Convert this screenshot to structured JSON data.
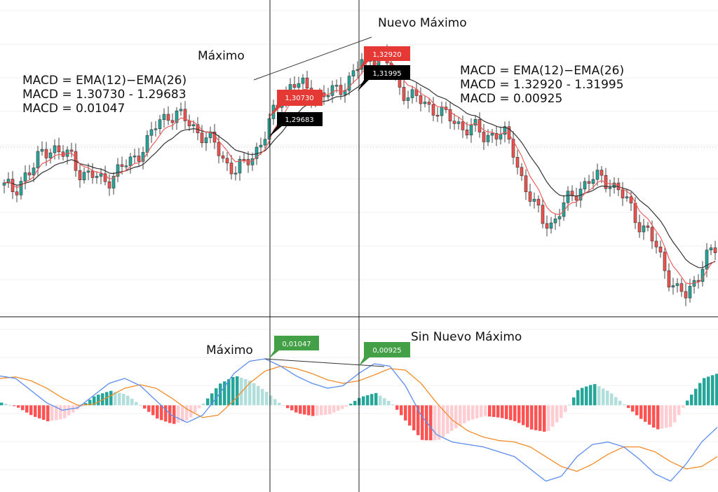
{
  "annotations": {
    "left_formula": [
      "MACD = EMA(12)−EMA(26)",
      "MACD = 1.30730 - 1.29683",
      "MACD = 0.01047"
    ],
    "right_formula": [
      "MACD = EMA(12)−EMA(26)",
      "MACD = 1.32920 - 1.31995",
      "MACD = 0.00925"
    ],
    "price_high_1": "Máximo",
    "price_high_2": "Nuevo Máximo",
    "macd_high_1": "Máximo",
    "macd_high_2": "Sin Nuevo Máximo"
  },
  "price_tags": {
    "ema12_a": "1,30730",
    "ema26_a": "1,29683",
    "ema12_b": "1,32920",
    "ema26_b": "1,31995"
  },
  "macd_tags": {
    "peak_1": "0,01047",
    "peak_2": "0,00925"
  },
  "colors": {
    "bull": "#26a69a",
    "bear": "#ef5350",
    "ema_fast": "#ef5350",
    "ema_slow": "#333333",
    "macd_line": "#5b8def",
    "signal_line": "#f28c28",
    "hist_pos_strong": "#26a69a",
    "hist_pos_weak": "#b2dfdb",
    "hist_neg_strong": "#ff5252",
    "hist_neg_weak": "#ffcdd2",
    "tag_red": "#e53935",
    "tag_black": "#000000",
    "tag_green": "#43a047"
  },
  "chart_data": [
    {
      "type": "candlestick",
      "title": "",
      "series": [
        {
          "name": "EMA(12)",
          "values_at_markers": [
            1.3073,
            1.3292
          ]
        },
        {
          "name": "EMA(26)",
          "values_at_markers": [
            1.29683,
            1.31995
          ]
        }
      ],
      "price_path": [
        0.0,
        -0.05,
        0.1,
        0.15,
        0.3,
        0.35,
        0.28,
        0.25,
        0.12,
        0.1,
        0.05,
        0.08,
        0.15,
        0.2,
        0.3,
        0.4,
        0.55,
        0.63,
        0.62,
        0.56,
        0.5,
        0.42,
        0.35,
        0.22,
        0.14,
        0.18,
        0.3,
        0.42,
        0.62,
        0.8,
        0.9,
        0.86,
        0.82,
        0.78,
        0.8,
        0.86,
        0.94,
        1.05,
        1.12,
        1.15,
        1.05,
        0.88,
        0.8,
        0.75,
        0.7,
        0.68,
        0.6,
        0.55,
        0.52,
        0.5,
        0.42,
        0.48,
        0.45,
        0.3,
        0.05,
        -0.15,
        -0.28,
        -0.32,
        -0.2,
        -0.08,
        0.0,
        0.05,
        0.08,
        0.05,
        -0.05,
        -0.15,
        -0.3,
        -0.4,
        -0.55,
        -0.75,
        -0.9,
        -0.95,
        -0.78,
        -0.62,
        -0.55
      ],
      "grid": true
    },
    {
      "type": "macd",
      "series": [
        {
          "name": "MACD",
          "peaks": [
            0.01047,
            0.00925
          ]
        },
        {
          "name": "Signal"
        },
        {
          "name": "Histogram"
        }
      ],
      "macd_path": [
        0.6,
        0.55,
        0.3,
        0.05,
        -0.1,
        -0.05,
        0.2,
        0.45,
        0.55,
        0.4,
        0.1,
        -0.2,
        -0.35,
        -0.2,
        0.2,
        0.65,
        0.9,
        0.95,
        0.8,
        0.6,
        0.45,
        0.35,
        0.4,
        0.65,
        0.85,
        0.8,
        0.4,
        -0.2,
        -0.6,
        -0.75,
        -0.8,
        -0.85,
        -0.95,
        -1.05,
        -1.3,
        -1.55,
        -1.45,
        -1.05,
        -0.8,
        -0.75,
        -0.85,
        -1.1,
        -1.4,
        -1.55,
        -1.2,
        -0.75,
        -0.45
      ],
      "signal_path": [
        0.55,
        0.58,
        0.5,
        0.35,
        0.15,
        0.0,
        0.02,
        0.18,
        0.35,
        0.42,
        0.35,
        0.15,
        -0.08,
        -0.25,
        -0.2,
        0.1,
        0.45,
        0.7,
        0.8,
        0.75,
        0.65,
        0.52,
        0.45,
        0.5,
        0.62,
        0.75,
        0.72,
        0.45,
        0.05,
        -0.3,
        -0.52,
        -0.65,
        -0.72,
        -0.75,
        -0.85,
        -1.05,
        -1.25,
        -1.35,
        -1.2,
        -1.0,
        -0.85,
        -0.85,
        -0.95,
        -1.15,
        -1.3,
        -1.25,
        -1.05
      ],
      "grid": true
    }
  ]
}
